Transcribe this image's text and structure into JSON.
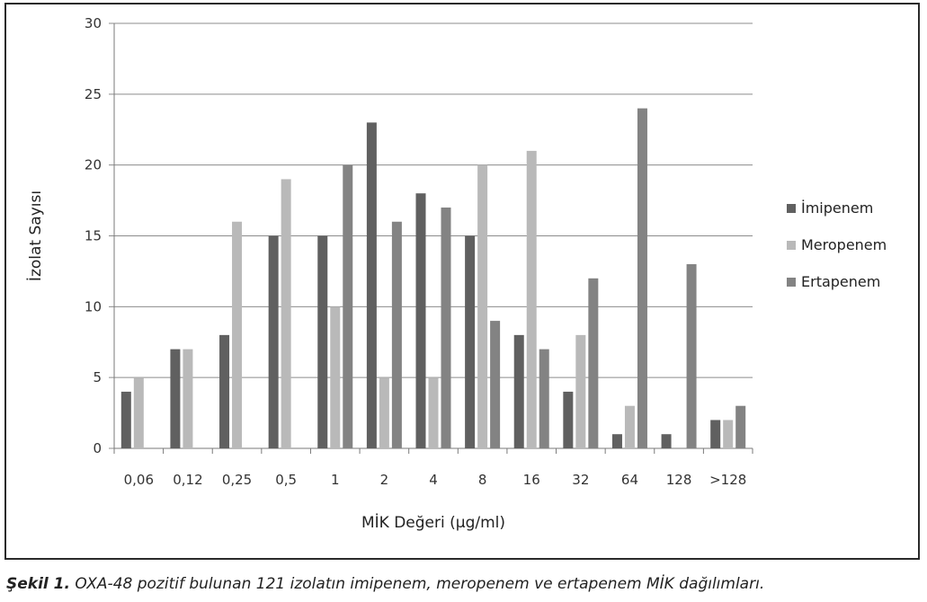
{
  "chart_data": {
    "type": "bar",
    "categories": [
      "0,06",
      "0,12",
      "0,25",
      "0,5",
      "1",
      "2",
      "4",
      "8",
      "16",
      "32",
      "64",
      "128",
      ">128"
    ],
    "series": [
      {
        "name": "İmipenem",
        "values": [
          4,
          7,
          8,
          15,
          15,
          23,
          18,
          15,
          8,
          4,
          1,
          1,
          2
        ],
        "color": "#606060"
      },
      {
        "name": "Meropenem",
        "values": [
          5,
          7,
          16,
          19,
          10,
          5,
          5,
          20,
          21,
          8,
          3,
          0,
          2
        ],
        "color": "#b9b9b9"
      },
      {
        "name": "Ertapenem",
        "values": [
          0,
          0,
          0,
          0,
          20,
          16,
          17,
          9,
          7,
          12,
          24,
          13,
          3
        ],
        "color": "#838383"
      }
    ],
    "xlabel": "MİK Değeri (µg/ml)",
    "ylabel": "İzolat Sayısı",
    "ylim": [
      0,
      30
    ],
    "yticks": [
      "0",
      "5",
      "10",
      "15",
      "20",
      "25",
      "30"
    ],
    "grid": true,
    "legend_position": "right"
  },
  "caption": {
    "label": "Şekil 1.",
    "text": " OXA-48 pozitif bulunan 121 izolatın imipenem, meropenem ve ertapenem MİK dağılımları."
  }
}
